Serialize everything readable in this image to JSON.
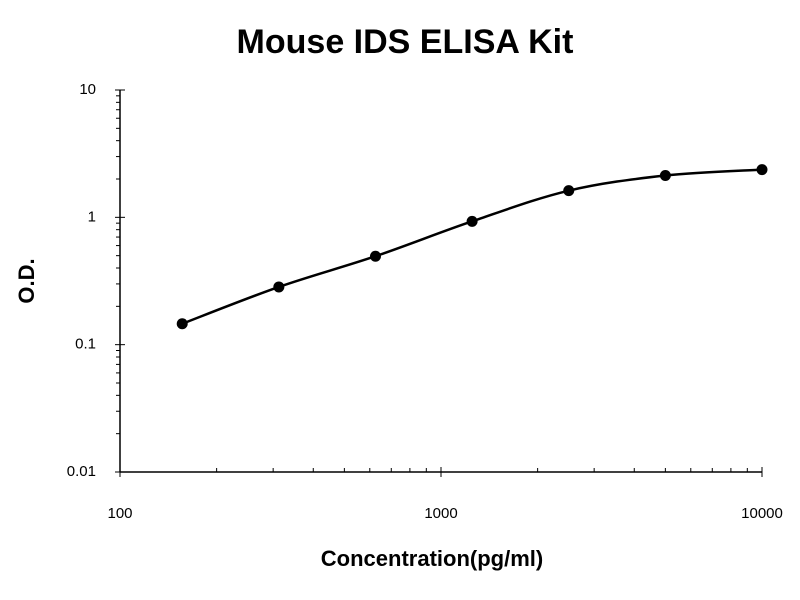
{
  "chart_data": {
    "type": "line",
    "title": "Mouse IDS ELISA Kit",
    "xlabel": "Concentration(pg/ml)",
    "ylabel": "O.D.",
    "xscale": "log",
    "yscale": "log",
    "minor_ticks": true,
    "smooth": true,
    "markers": true,
    "color": "#000000",
    "x": [
      156.25,
      312.5,
      625,
      1250,
      2500,
      5000,
      10000
    ],
    "values": [
      0.146,
      0.284,
      0.495,
      0.93,
      1.62,
      2.13,
      2.37
    ],
    "xlim": [
      100,
      10000
    ],
    "xticks": [
      100,
      1000,
      10000
    ],
    "ylim": [
      0.01,
      10
    ],
    "yticks": [
      0.01,
      0.1,
      1,
      10
    ]
  }
}
